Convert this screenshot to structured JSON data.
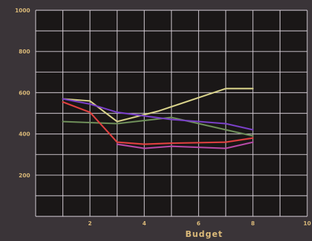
{
  "chart_data": {
    "type": "line",
    "title": "",
    "xlabel": "Budget",
    "ylabel": "",
    "xlim": [
      0,
      10
    ],
    "ylim": [
      0,
      1000
    ],
    "x_ticks": [
      2,
      4,
      6,
      8,
      10
    ],
    "x_tick_labels": [
      "2",
      "4",
      "6",
      "8",
      "10"
    ],
    "y_ticks": [
      200,
      400,
      600,
      800,
      1000
    ],
    "y_tick_labels": [
      "200",
      "400",
      "600",
      "800",
      "1000"
    ],
    "grid": true,
    "legend": "none",
    "series": [
      {
        "color": "#d8d28a",
        "x": [
          1,
          2,
          3,
          4.5,
          7,
          8
        ],
        "y": [
          570,
          560,
          460,
          510,
          620,
          620
        ]
      },
      {
        "color": "#6f8f5a",
        "x": [
          1,
          3,
          5,
          8
        ],
        "y": [
          460,
          450,
          480,
          390
        ]
      },
      {
        "color": "#7a40c8",
        "x": [
          1,
          2,
          3,
          5,
          7,
          8
        ],
        "y": [
          570,
          545,
          505,
          470,
          450,
          420
        ]
      },
      {
        "color": "#e04040",
        "x": [
          1,
          2,
          3,
          4,
          5,
          7,
          8
        ],
        "y": [
          555,
          505,
          360,
          350,
          355,
          360,
          380
        ]
      },
      {
        "color": "#b84aa8",
        "x": [
          3,
          4,
          5,
          7,
          8
        ],
        "y": [
          350,
          330,
          340,
          330,
          360
        ]
      }
    ],
    "colors": {
      "background": "#3a3438",
      "plot_area": "#1a1717",
      "grid": "#d8d0d8",
      "text": "#d9b878"
    }
  }
}
